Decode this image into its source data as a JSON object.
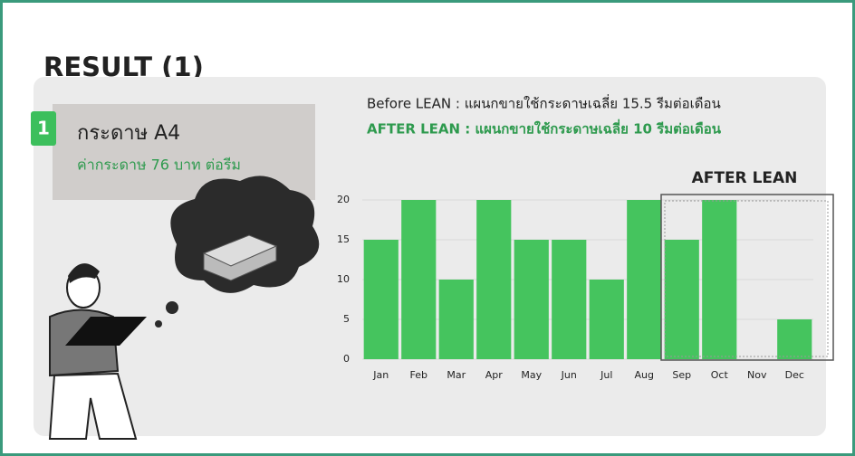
{
  "slide": {
    "title": "RESULT (1)"
  },
  "card": {
    "number": "1",
    "title": "กระดาษ A4",
    "subtitle": "ค่ากระดาษ 76 บาท ต่อรีม"
  },
  "notes": {
    "before": "Before LEAN : แผนกขายใช้กระดาษเฉลี่ย 15.5 รีมต่อเดือน",
    "after": "AFTER LEAN : แผนกขายใช้กระดาษเฉลี่ย 10 รีมต่อเดือน"
  },
  "chart_data": {
    "type": "bar",
    "highlight_label": "AFTER LEAN",
    "categories": [
      "Jan",
      "Feb",
      "Mar",
      "Apr",
      "May",
      "Jun",
      "Jul",
      "Aug",
      "Sep",
      "Oct",
      "Nov",
      "Dec"
    ],
    "values": [
      15,
      20,
      10,
      20,
      15,
      15,
      10,
      20,
      15,
      20,
      0,
      5
    ],
    "color": "#45c45e",
    "ylim": [
      0,
      20
    ],
    "yticks": [
      0,
      5,
      10,
      15,
      20
    ],
    "grid": true
  }
}
